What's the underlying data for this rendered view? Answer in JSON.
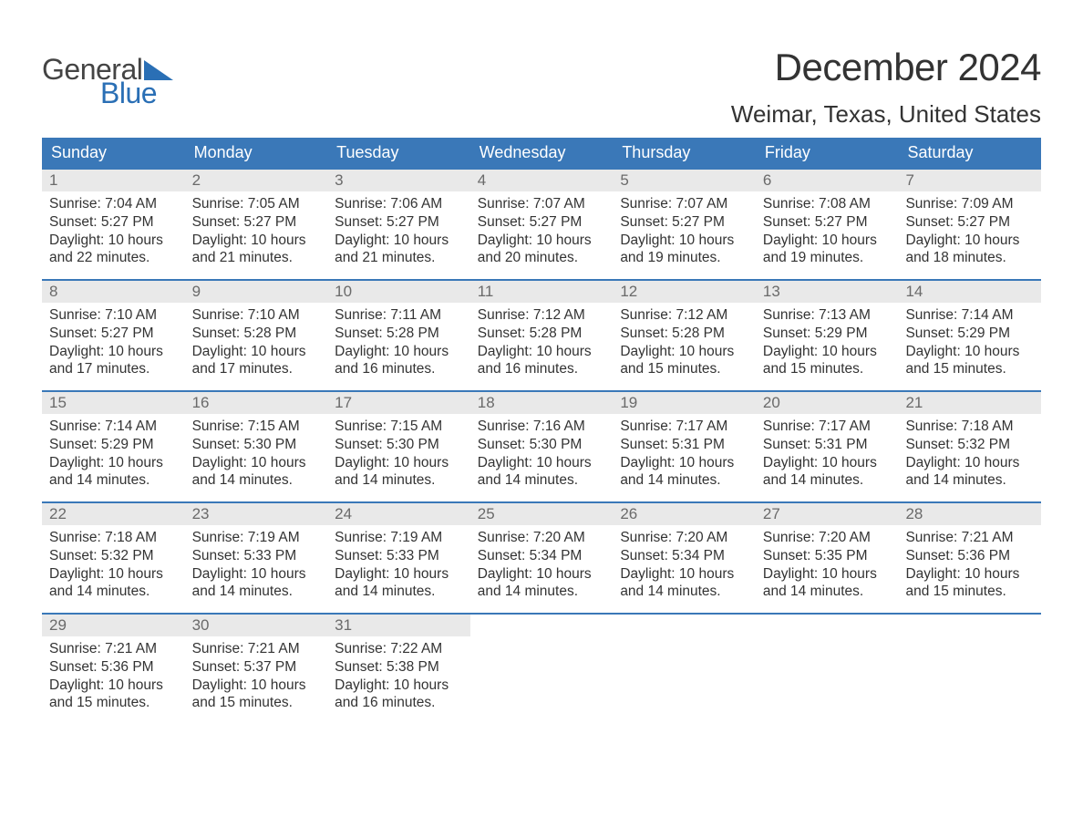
{
  "logo": {
    "general": "General",
    "blue": "Blue",
    "accent_color": "#2a6fb5"
  },
  "title": "December 2024",
  "location": "Weimar, Texas, United States",
  "header_bg": "#3a78b8",
  "daynum_bg": "#e9e9e9",
  "border_color": "#3a78b8",
  "text_color": "#333333",
  "day_headers": [
    "Sunday",
    "Monday",
    "Tuesday",
    "Wednesday",
    "Thursday",
    "Friday",
    "Saturday"
  ],
  "weeks": [
    [
      {
        "n": "1",
        "sunrise": "Sunrise: 7:04 AM",
        "sunset": "Sunset: 5:27 PM",
        "day1": "Daylight: 10 hours",
        "day2": "and 22 minutes."
      },
      {
        "n": "2",
        "sunrise": "Sunrise: 7:05 AM",
        "sunset": "Sunset: 5:27 PM",
        "day1": "Daylight: 10 hours",
        "day2": "and 21 minutes."
      },
      {
        "n": "3",
        "sunrise": "Sunrise: 7:06 AM",
        "sunset": "Sunset: 5:27 PM",
        "day1": "Daylight: 10 hours",
        "day2": "and 21 minutes."
      },
      {
        "n": "4",
        "sunrise": "Sunrise: 7:07 AM",
        "sunset": "Sunset: 5:27 PM",
        "day1": "Daylight: 10 hours",
        "day2": "and 20 minutes."
      },
      {
        "n": "5",
        "sunrise": "Sunrise: 7:07 AM",
        "sunset": "Sunset: 5:27 PM",
        "day1": "Daylight: 10 hours",
        "day2": "and 19 minutes."
      },
      {
        "n": "6",
        "sunrise": "Sunrise: 7:08 AM",
        "sunset": "Sunset: 5:27 PM",
        "day1": "Daylight: 10 hours",
        "day2": "and 19 minutes."
      },
      {
        "n": "7",
        "sunrise": "Sunrise: 7:09 AM",
        "sunset": "Sunset: 5:27 PM",
        "day1": "Daylight: 10 hours",
        "day2": "and 18 minutes."
      }
    ],
    [
      {
        "n": "8",
        "sunrise": "Sunrise: 7:10 AM",
        "sunset": "Sunset: 5:27 PM",
        "day1": "Daylight: 10 hours",
        "day2": "and 17 minutes."
      },
      {
        "n": "9",
        "sunrise": "Sunrise: 7:10 AM",
        "sunset": "Sunset: 5:28 PM",
        "day1": "Daylight: 10 hours",
        "day2": "and 17 minutes."
      },
      {
        "n": "10",
        "sunrise": "Sunrise: 7:11 AM",
        "sunset": "Sunset: 5:28 PM",
        "day1": "Daylight: 10 hours",
        "day2": "and 16 minutes."
      },
      {
        "n": "11",
        "sunrise": "Sunrise: 7:12 AM",
        "sunset": "Sunset: 5:28 PM",
        "day1": "Daylight: 10 hours",
        "day2": "and 16 minutes."
      },
      {
        "n": "12",
        "sunrise": "Sunrise: 7:12 AM",
        "sunset": "Sunset: 5:28 PM",
        "day1": "Daylight: 10 hours",
        "day2": "and 15 minutes."
      },
      {
        "n": "13",
        "sunrise": "Sunrise: 7:13 AM",
        "sunset": "Sunset: 5:29 PM",
        "day1": "Daylight: 10 hours",
        "day2": "and 15 minutes."
      },
      {
        "n": "14",
        "sunrise": "Sunrise: 7:14 AM",
        "sunset": "Sunset: 5:29 PM",
        "day1": "Daylight: 10 hours",
        "day2": "and 15 minutes."
      }
    ],
    [
      {
        "n": "15",
        "sunrise": "Sunrise: 7:14 AM",
        "sunset": "Sunset: 5:29 PM",
        "day1": "Daylight: 10 hours",
        "day2": "and 14 minutes."
      },
      {
        "n": "16",
        "sunrise": "Sunrise: 7:15 AM",
        "sunset": "Sunset: 5:30 PM",
        "day1": "Daylight: 10 hours",
        "day2": "and 14 minutes."
      },
      {
        "n": "17",
        "sunrise": "Sunrise: 7:15 AM",
        "sunset": "Sunset: 5:30 PM",
        "day1": "Daylight: 10 hours",
        "day2": "and 14 minutes."
      },
      {
        "n": "18",
        "sunrise": "Sunrise: 7:16 AM",
        "sunset": "Sunset: 5:30 PM",
        "day1": "Daylight: 10 hours",
        "day2": "and 14 minutes."
      },
      {
        "n": "19",
        "sunrise": "Sunrise: 7:17 AM",
        "sunset": "Sunset: 5:31 PM",
        "day1": "Daylight: 10 hours",
        "day2": "and 14 minutes."
      },
      {
        "n": "20",
        "sunrise": "Sunrise: 7:17 AM",
        "sunset": "Sunset: 5:31 PM",
        "day1": "Daylight: 10 hours",
        "day2": "and 14 minutes."
      },
      {
        "n": "21",
        "sunrise": "Sunrise: 7:18 AM",
        "sunset": "Sunset: 5:32 PM",
        "day1": "Daylight: 10 hours",
        "day2": "and 14 minutes."
      }
    ],
    [
      {
        "n": "22",
        "sunrise": "Sunrise: 7:18 AM",
        "sunset": "Sunset: 5:32 PM",
        "day1": "Daylight: 10 hours",
        "day2": "and 14 minutes."
      },
      {
        "n": "23",
        "sunrise": "Sunrise: 7:19 AM",
        "sunset": "Sunset: 5:33 PM",
        "day1": "Daylight: 10 hours",
        "day2": "and 14 minutes."
      },
      {
        "n": "24",
        "sunrise": "Sunrise: 7:19 AM",
        "sunset": "Sunset: 5:33 PM",
        "day1": "Daylight: 10 hours",
        "day2": "and 14 minutes."
      },
      {
        "n": "25",
        "sunrise": "Sunrise: 7:20 AM",
        "sunset": "Sunset: 5:34 PM",
        "day1": "Daylight: 10 hours",
        "day2": "and 14 minutes."
      },
      {
        "n": "26",
        "sunrise": "Sunrise: 7:20 AM",
        "sunset": "Sunset: 5:34 PM",
        "day1": "Daylight: 10 hours",
        "day2": "and 14 minutes."
      },
      {
        "n": "27",
        "sunrise": "Sunrise: 7:20 AM",
        "sunset": "Sunset: 5:35 PM",
        "day1": "Daylight: 10 hours",
        "day2": "and 14 minutes."
      },
      {
        "n": "28",
        "sunrise": "Sunrise: 7:21 AM",
        "sunset": "Sunset: 5:36 PM",
        "day1": "Daylight: 10 hours",
        "day2": "and 15 minutes."
      }
    ],
    [
      {
        "n": "29",
        "sunrise": "Sunrise: 7:21 AM",
        "sunset": "Sunset: 5:36 PM",
        "day1": "Daylight: 10 hours",
        "day2": "and 15 minutes."
      },
      {
        "n": "30",
        "sunrise": "Sunrise: 7:21 AM",
        "sunset": "Sunset: 5:37 PM",
        "day1": "Daylight: 10 hours",
        "day2": "and 15 minutes."
      },
      {
        "n": "31",
        "sunrise": "Sunrise: 7:22 AM",
        "sunset": "Sunset: 5:38 PM",
        "day1": "Daylight: 10 hours",
        "day2": "and 16 minutes."
      },
      null,
      null,
      null,
      null
    ]
  ]
}
